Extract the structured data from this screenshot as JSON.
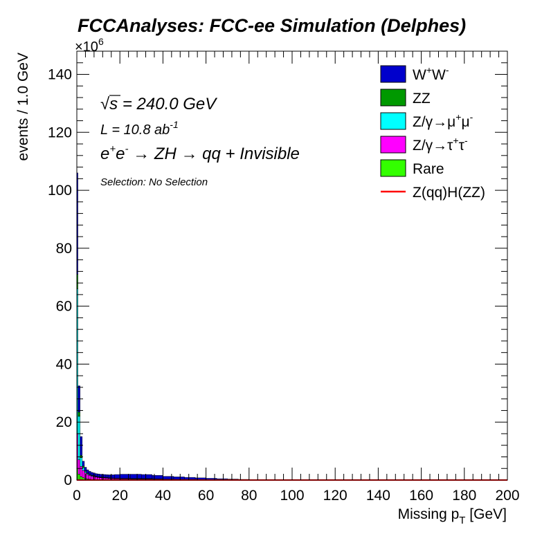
{
  "chart_data": {
    "type": "bar",
    "stacked": true,
    "title": "FCCAnalyses: FCC-ee Simulation (Delphes)",
    "xlabel_main": "Missing p",
    "xlabel_sub": "T",
    "xlabel_unit": " [GeV]",
    "ylabel": "events / 1.0 GeV",
    "y_multiplier_base": "×10",
    "y_multiplier_exp": "6",
    "xlim": [
      0,
      200
    ],
    "ylim": [
      0,
      148
    ],
    "x_ticks": [
      0,
      20,
      40,
      60,
      80,
      100,
      120,
      140,
      160,
      180,
      200
    ],
    "y_ticks": [
      0,
      20,
      40,
      60,
      80,
      100,
      120,
      140
    ],
    "grid": false,
    "legend_position": "top-right",
    "annotations": {
      "sqrt_s_root": "√",
      "sqrt_s_text": "s = 240.0 GeV",
      "lumi_text": "L = 10.8 ab",
      "lumi_exp": "-1",
      "process_e1": "e",
      "process_sup1": "+",
      "process_e2": "e",
      "process_sup2": "-",
      "process_rest": " → ZH → qq + Invisible",
      "selection": "Selection: No Selection"
    },
    "bins": [
      0.5,
      1.5,
      2.5,
      3.5,
      4.5,
      5.5,
      6.5,
      7.5,
      8.5,
      9.5,
      10.5,
      11.5,
      12.5,
      13.5,
      14.5,
      15.5,
      17.5,
      20,
      25,
      30,
      35,
      40,
      45,
      50,
      55,
      60,
      65,
      70,
      75,
      80,
      85,
      90,
      100,
      120,
      140,
      160,
      180,
      200
    ],
    "series": [
      {
        "name": "Rare",
        "color": "#33ff00",
        "values": [
          4.0,
          2.0,
          1.2,
          0.8,
          0.5,
          0.4,
          0.3,
          0.2,
          0.2,
          0.15,
          0.1,
          0.1,
          0.1,
          0.1,
          0.1,
          0.05,
          0.05,
          0.05,
          0.05,
          0.05,
          0.05,
          0.05,
          0.02,
          0.02,
          0.02,
          0.02,
          0.01,
          0.01,
          0.01,
          0.0,
          0.0,
          0.0,
          0.0,
          0.0,
          0.0,
          0.0,
          0.0,
          0.0
        ]
      },
      {
        "name": "Z/γ→τ⁺τ⁻",
        "color": "#ff00ff",
        "values": [
          12.0,
          5.0,
          3.5,
          2.5,
          2.0,
          1.5,
          1.3,
          1.1,
          1.0,
          0.9,
          0.8,
          0.7,
          0.65,
          0.6,
          0.55,
          0.5,
          0.45,
          0.4,
          0.35,
          0.3,
          0.25,
          0.2,
          0.15,
          0.12,
          0.1,
          0.08,
          0.06,
          0.04,
          0.03,
          0.02,
          0.01,
          0.0,
          0.0,
          0.0,
          0.0,
          0.0,
          0.0,
          0.0
        ]
      },
      {
        "name": "Z/γ→μ⁺μ⁻",
        "color": "#00ffff",
        "values": [
          50.0,
          15.0,
          3.0,
          1.0,
          0.4,
          0.3,
          0.2,
          0.2,
          0.15,
          0.1,
          0.1,
          0.1,
          0.1,
          0.1,
          0.1,
          0.1,
          0.1,
          0.1,
          0.1,
          0.1,
          0.1,
          0.05,
          0.05,
          0.05,
          0.05,
          0.05,
          0.03,
          0.02,
          0.02,
          0.01,
          0.0,
          0.0,
          0.0,
          0.0,
          0.0,
          0.0,
          0.0,
          0.0
        ]
      },
      {
        "name": "ZZ",
        "color": "#009900",
        "values": [
          5.0,
          1.5,
          0.8,
          0.5,
          0.3,
          0.2,
          0.2,
          0.15,
          0.15,
          0.1,
          0.1,
          0.1,
          0.1,
          0.1,
          0.1,
          0.1,
          0.1,
          0.1,
          0.1,
          0.1,
          0.1,
          0.1,
          0.05,
          0.05,
          0.05,
          0.05,
          0.05,
          0.03,
          0.02,
          0.01,
          0.01,
          0.0,
          0.0,
          0.0,
          0.0,
          0.0,
          0.0,
          0.0
        ]
      },
      {
        "name": "W⁺W⁻",
        "color": "#0000cc",
        "values": [
          35.0,
          9.0,
          6.5,
          1.7,
          1.2,
          1.1,
          1.0,
          1.0,
          0.95,
          0.95,
          1.0,
          1.0,
          1.0,
          1.0,
          1.0,
          1.05,
          1.1,
          1.25,
          1.4,
          1.45,
          1.4,
          1.2,
          1.0,
          0.85,
          0.7,
          0.55,
          0.45,
          0.35,
          0.25,
          0.18,
          0.1,
          0.05,
          0.03,
          0.02,
          0.02,
          0.02,
          0.02,
          0.02
        ]
      }
    ],
    "signal": {
      "name": "Z(qq)H(ZZ)",
      "color": "#ff0000",
      "values": [
        0.01,
        0.01,
        0.01,
        0.01,
        0.01,
        0.01,
        0.01,
        0.01,
        0.01,
        0.01,
        0.01,
        0.01,
        0.01,
        0.01,
        0.01,
        0.01,
        0.01,
        0.01,
        0.01,
        0.01,
        0.01,
        0.01,
        0.01,
        0.01,
        0.01,
        0.01,
        0.01,
        0.01,
        0.01,
        0.01,
        0.01,
        0.01,
        0.01,
        0.01,
        0.01,
        0.01,
        0.01,
        0.01
      ]
    },
    "legend": [
      {
        "label_main": "W",
        "sup1": "+",
        "label_mid": "W",
        "sup2": "-",
        "label_end": "",
        "color": "#0000cc",
        "kind": "box"
      },
      {
        "label_main": "ZZ",
        "sup1": "",
        "label_mid": "",
        "sup2": "",
        "label_end": "",
        "color": "#009900",
        "kind": "box"
      },
      {
        "label_main": "Z/γ→μ",
        "sup1": "+",
        "label_mid": "μ",
        "sup2": "-",
        "label_end": "",
        "color": "#00ffff",
        "kind": "box"
      },
      {
        "label_main": "Z/γ→τ",
        "sup1": "+",
        "label_mid": "τ",
        "sup2": "-",
        "label_end": "",
        "color": "#ff00ff",
        "kind": "box"
      },
      {
        "label_main": "Rare",
        "sup1": "",
        "label_mid": "",
        "sup2": "",
        "label_end": "",
        "color": "#33ff00",
        "kind": "box"
      },
      {
        "label_main": "Z(qq)H(ZZ)",
        "sup1": "",
        "label_mid": "",
        "sup2": "",
        "label_end": "",
        "color": "#ff0000",
        "kind": "line"
      }
    ]
  }
}
